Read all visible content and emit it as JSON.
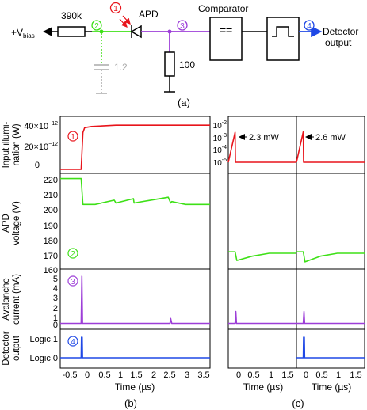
{
  "circuit": {
    "vbias_label": "+V",
    "vbias_sub": "bias",
    "r1_label": "390k",
    "apd_label": "APD",
    "cap_label": "1.2",
    "r2_label": "100",
    "comparator_label": "Comparator",
    "output_label_1": "Detector",
    "output_label_2": "output",
    "comparator_symbol": "==",
    "panel_label": "(a)",
    "node_labels": [
      "1",
      "2",
      "3",
      "4"
    ],
    "colors": {
      "node1": "#e8141b",
      "node2": "#3ee017",
      "node3": "#9d3ed8",
      "node4": "#1f48e6",
      "cap": "#aaaaaa"
    }
  },
  "panel_b": {
    "panel_label": "(b)",
    "xlabel": "Time (µs)",
    "xticks": [
      "-0.5",
      "0",
      "0.5",
      "1",
      "1.5",
      "2",
      "2.5",
      "3",
      "3.5"
    ],
    "row_labels": [
      [
        "Input illumi-",
        "nation (W)"
      ],
      [
        "APD",
        "voltage (V)"
      ],
      [
        "Avalanche",
        "current (mA)"
      ],
      [
        "Detector",
        "output"
      ]
    ],
    "illum_ticks": [
      "40×10",
      "20×10",
      "0"
    ],
    "illum_exp": "−12",
    "voltage_ticks": [
      "220",
      "210",
      "200",
      "190",
      "180",
      "170",
      "160"
    ],
    "current_ticks": [
      "5",
      "4",
      "3",
      "2",
      "1",
      "0"
    ],
    "logic_ticks": [
      "Logic 1",
      "Logic 0"
    ]
  },
  "panel_c": {
    "panel_label": "(c)",
    "xlabel": "Time (µs)",
    "xticks": [
      "0",
      "0.5",
      "1",
      "1.5"
    ],
    "log_ticks": [
      "10",
      "10",
      "10",
      "10"
    ],
    "log_exps": [
      "-2",
      "-3",
      "-4",
      "-5"
    ],
    "power_annotations": [
      "2.3 mW",
      "2.6 mW"
    ]
  },
  "chart_data": {
    "type": "line",
    "panels": [
      {
        "panel": "(b) input illumination",
        "ylabel": "Input illumination (W)",
        "ylim": [
          0,
          4e-11
        ],
        "series": [
          {
            "x": [
              -0.6,
              0.0,
              0.05,
              0.1,
              0.3,
              1.0,
              2.0,
              3.0,
              3.7
            ],
            "values": [
              0,
              0,
              3e-11,
              3.4e-11,
              3.5e-11,
              3.6e-11,
              3.6e-11,
              3.6e-11,
              3.6e-11
            ]
          }
        ]
      },
      {
        "panel": "(b) APD voltage",
        "ylabel": "APD voltage (V)",
        "ylim": [
          157,
          222
        ],
        "series": [
          {
            "x": [
              -0.6,
              0.0,
              0.05,
              0.4,
              0.95,
              1.0,
              1.5,
              1.52,
              2.0,
              2.5,
              2.57,
              2.6,
              3.0,
              3.7
            ],
            "values": [
              220,
              220,
              202,
              202,
              205,
              203,
              206,
              203,
              205,
              207,
              203,
              204,
              202,
              202
            ]
          }
        ]
      },
      {
        "panel": "(b) avalanche current",
        "ylabel": "Avalanche current (mA)",
        "ylim": [
          -0.2,
          5.2
        ],
        "series": [
          {
            "x": [
              -0.6,
              0.0,
              0.02,
              0.04,
              1.0,
              2.55,
              2.57,
              2.6,
              3.7
            ],
            "values": [
              0,
              0,
              4.8,
              0,
              0,
              0,
              0.5,
              0,
              0
            ]
          }
        ]
      },
      {
        "panel": "(b) detector output",
        "ylabel": "Detector output",
        "ylim": [
          0,
          1
        ],
        "series": [
          {
            "x": [
              -0.6,
              0.0,
              0.01,
              0.03,
              0.04,
              3.7
            ],
            "values": [
              0,
              0,
              1,
              1,
              0,
              0
            ]
          }
        ]
      },
      {
        "panel": "(c) input illumination, left",
        "ylabel": "Input illumination (W)",
        "yscale": "log",
        "ylim": [
          1e-05,
          0.01
        ],
        "annotation": "2.3 mW",
        "series": [
          {
            "x": [
              -0.2,
              0.0,
              0.01,
              1.8
            ],
            "values": [
              1e-05,
              0.0023,
              1e-05,
              1e-05
            ]
          }
        ]
      },
      {
        "panel": "(c) input illumination, right",
        "ylabel": "Input illumination (W)",
        "yscale": "log",
        "ylim": [
          1e-05,
          0.01
        ],
        "annotation": "2.6 mW",
        "series": [
          {
            "x": [
              -0.2,
              0.0,
              0.01,
              1.8
            ],
            "values": [
              1e-05,
              0.0026,
              1e-05,
              1e-05
            ]
          }
        ]
      },
      {
        "panel": "(c) APD voltage, left",
        "ylabel": "APD voltage (V)",
        "ylim": [
          157,
          222
        ],
        "series": [
          {
            "x": [
              -0.2,
              0.0,
              0.05,
              0.5,
              1.0,
              1.8
            ],
            "values": [
              169,
              169,
              163,
              166,
              168,
              168
            ]
          }
        ]
      },
      {
        "panel": "(c) APD voltage, right",
        "ylabel": "APD voltage (V)",
        "ylim": [
          157,
          222
        ],
        "series": [
          {
            "x": [
              -0.2,
              0.0,
              0.05,
              0.5,
              1.0,
              1.8
            ],
            "values": [
              169,
              169,
              162,
              166,
              168,
              168
            ]
          }
        ]
      },
      {
        "panel": "(c) avalanche current, left",
        "ylabel": "Avalanche current (mA)",
        "ylim": [
          -0.2,
          5.2
        ],
        "series": [
          {
            "x": [
              -0.2,
              0.0,
              0.02,
              0.04,
              1.8
            ],
            "values": [
              0,
              0,
              1.2,
              0,
              0
            ]
          }
        ]
      },
      {
        "panel": "(c) avalanche current, right",
        "ylabel": "Avalanche current (mA)",
        "ylim": [
          -0.2,
          5.2
        ],
        "series": [
          {
            "x": [
              -0.2,
              0.0,
              0.02,
              0.04,
              1.8
            ],
            "values": [
              0,
              0,
              1.2,
              0,
              0
            ]
          }
        ]
      },
      {
        "panel": "(c) detector output, right",
        "ylabel": "Detector output",
        "ylim": [
          0,
          1
        ],
        "series": [
          {
            "x": [
              -0.2,
              0.0,
              0.01,
              0.03,
              0.04,
              1.8
            ],
            "values": [
              0,
              0,
              1,
              1,
              0,
              0
            ]
          }
        ]
      }
    ]
  }
}
